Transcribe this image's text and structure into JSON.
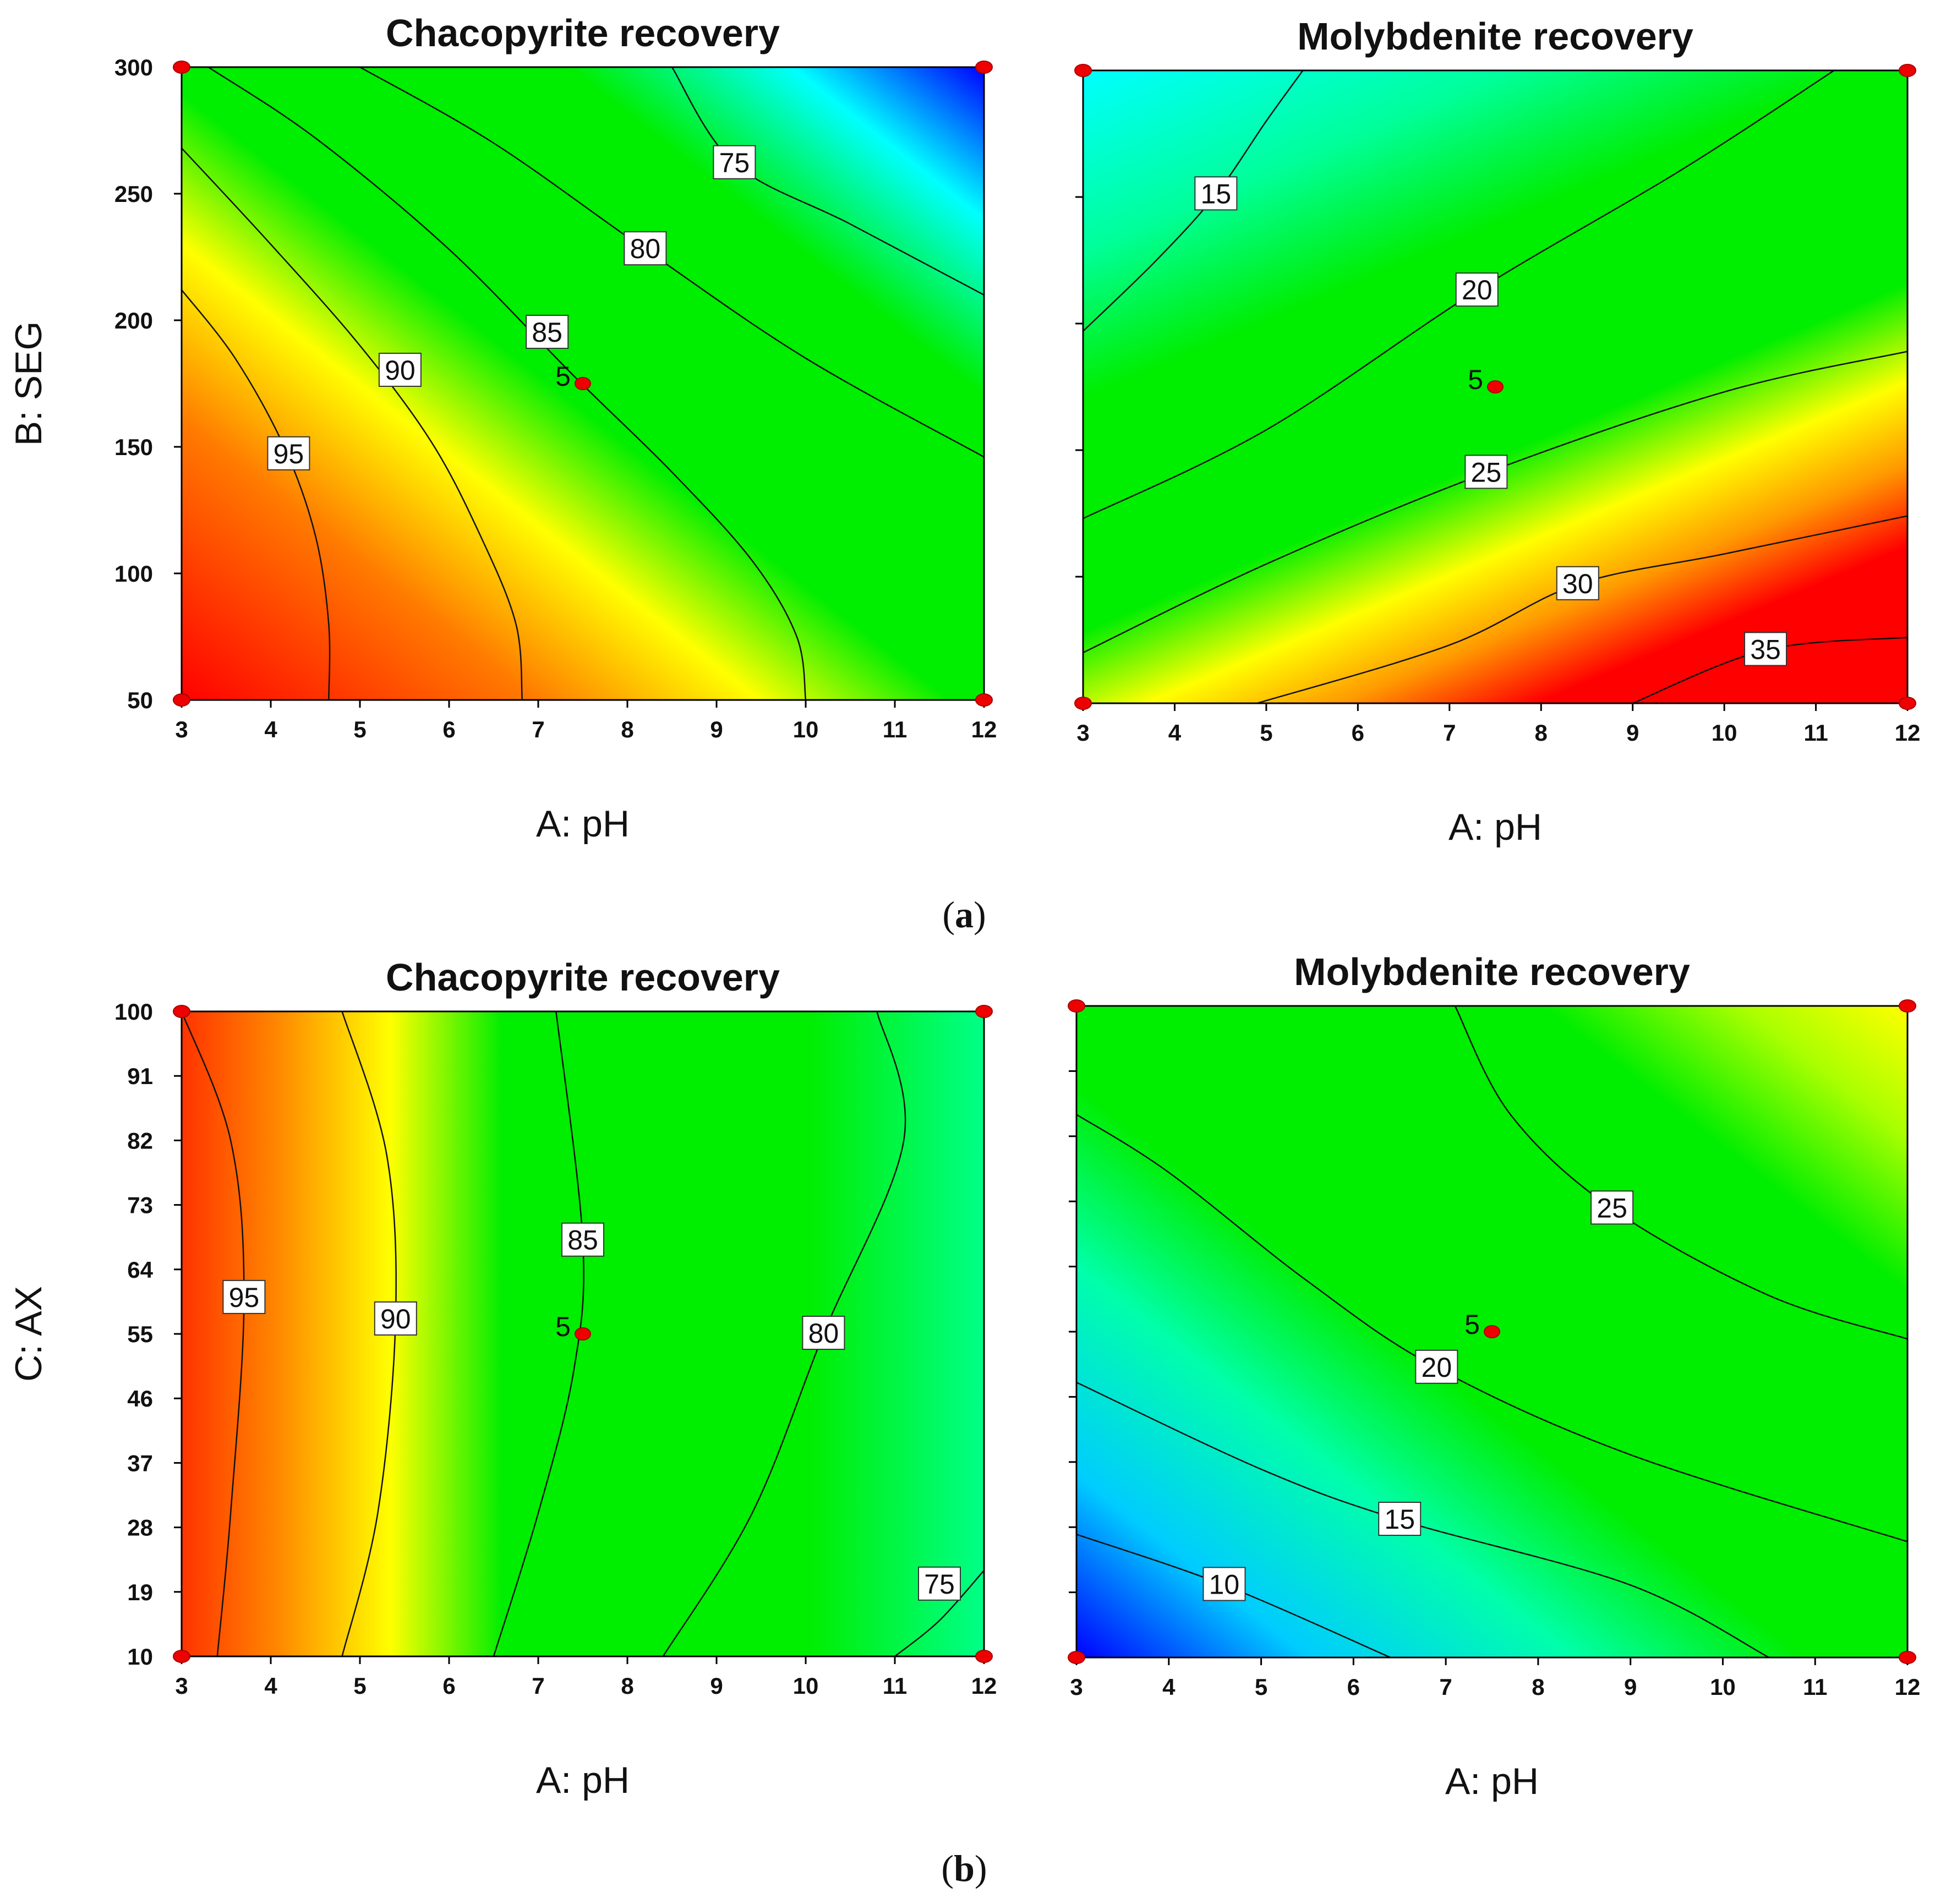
{
  "chart_data": [
    {
      "type": "heatmap",
      "title": "Chacopyrite recovery",
      "xlabel": "A: pH",
      "ylabel": "B: SEG",
      "xlim": [
        3,
        12
      ],
      "ylim": [
        50,
        300
      ],
      "xticks": [
        "3",
        "4",
        "5",
        "6",
        "7",
        "8",
        "9",
        "10",
        "11",
        "12"
      ],
      "yticks": [
        "50",
        "100",
        "150",
        "200",
        "250",
        "300"
      ],
      "colorscale": "blue-cyan-green-yellow-red (low to high)",
      "color_range": [
        71,
        98
      ],
      "contours": [
        {
          "level": 95,
          "label": "95",
          "label_at": [
            4.2,
            147
          ],
          "points": [
            [
              3,
              212
            ],
            [
              3.6,
              185
            ],
            [
              4.15,
              150
            ],
            [
              4.5,
              115
            ],
            [
              4.65,
              80
            ],
            [
              4.65,
              50
            ]
          ]
        },
        {
          "level": 90,
          "label": "90",
          "label_at": [
            5.45,
            180
          ],
          "points": [
            [
              3,
              268
            ],
            [
              4,
              230
            ],
            [
              5,
              190
            ],
            [
              5.8,
              152
            ],
            [
              6.35,
              115
            ],
            [
              6.75,
              80
            ],
            [
              6.82,
              50
            ]
          ]
        },
        {
          "level": 85,
          "label": "85",
          "label_at": [
            7.1,
            195
          ],
          "points": [
            [
              3.3,
              300
            ],
            [
              4.5,
              272
            ],
            [
              6,
              228
            ],
            [
              7.4,
              178
            ],
            [
              8.5,
              140
            ],
            [
              9.4,
              105
            ],
            [
              9.9,
              75
            ],
            [
              10,
              50
            ]
          ]
        },
        {
          "level": 80,
          "label": "80",
          "label_at": [
            8.2,
            228
          ],
          "points": [
            [
              5,
              300
            ],
            [
              6.5,
              270
            ],
            [
              8.2,
              228
            ],
            [
              10,
              185
            ],
            [
              12,
              146
            ]
          ]
        },
        {
          "level": 75,
          "label": "75",
          "label_at": [
            9.2,
            262
          ],
          "points": [
            [
              8.5,
              300
            ],
            [
              9.2,
              262
            ],
            [
              10.5,
              238
            ],
            [
              12,
              210
            ]
          ]
        }
      ],
      "center_point": {
        "x": 7.5,
        "y": 175,
        "label": "5"
      },
      "design_points": [
        [
          3,
          50
        ],
        [
          3,
          300
        ],
        [
          12,
          50
        ],
        [
          12,
          300
        ]
      ],
      "colors": {
        "red": "#ff0000",
        "orange": "#ff8c00",
        "yellow": "#ffff00",
        "green": "#00ee00",
        "cyan": "#00ffff",
        "blue": "#0000ff"
      }
    },
    {
      "type": "heatmap",
      "title": "Molybdenite recovery",
      "xlabel": "A: pH",
      "ylabel": "",
      "xlim": [
        3,
        12
      ],
      "ylim": [
        50,
        300
      ],
      "xticks": [
        "3",
        "4",
        "5",
        "6",
        "7",
        "8",
        "9",
        "10",
        "11",
        "12"
      ],
      "yticks": [],
      "colorscale": "blue-cyan-green-yellow-red (low to high)",
      "color_range": [
        9,
        37
      ],
      "contours": [
        {
          "level": 15,
          "label": "15",
          "label_at": [
            4.45,
            251
          ],
          "points": [
            [
              3,
              197
            ],
            [
              3.8,
              225
            ],
            [
              4.45,
              251
            ],
            [
              5,
              280
            ],
            [
              5.4,
              300
            ]
          ]
        },
        {
          "level": 20,
          "label": "20",
          "label_at": [
            7.3,
            213
          ],
          "points": [
            [
              3,
              123
            ],
            [
              5,
              158
            ],
            [
              7.3,
              213
            ],
            [
              9.5,
              260
            ],
            [
              11.2,
              300
            ]
          ]
        },
        {
          "level": 25,
          "label": "25",
          "label_at": [
            7.4,
            141
          ],
          "points": [
            [
              3,
              70
            ],
            [
              5,
              105
            ],
            [
              7.4,
              141
            ],
            [
              10,
              173
            ],
            [
              12,
              189
            ]
          ]
        },
        {
          "level": 30,
          "label": "30",
          "label_at": [
            8.4,
            97
          ],
          "points": [
            [
              4.9,
              50
            ],
            [
              7,
              73
            ],
            [
              8.4,
              97
            ],
            [
              10,
              109
            ],
            [
              12,
              124
            ]
          ]
        },
        {
          "level": 35,
          "label": "35",
          "label_at": [
            10.45,
            71
          ],
          "points": [
            [
              9,
              50
            ],
            [
              10.45,
              71
            ],
            [
              12,
              76
            ]
          ]
        }
      ],
      "center_point": {
        "x": 7.5,
        "y": 175,
        "label": "5"
      },
      "design_points": [
        [
          3,
          50
        ],
        [
          3,
          300
        ],
        [
          12,
          50
        ],
        [
          12,
          300
        ]
      ],
      "colors": {
        "red": "#ff0000",
        "orange": "#ff8c00",
        "yellow": "#ffff00",
        "green": "#00ee00",
        "cyan": "#00ffff",
        "blue": "#0000ff"
      }
    },
    {
      "type": "heatmap",
      "title": "Chacopyrite recovery",
      "xlabel": "A: pH",
      "ylabel": "C: AX",
      "xlim": [
        3,
        12
      ],
      "ylim": [
        10,
        100
      ],
      "xticks": [
        "3",
        "4",
        "5",
        "6",
        "7",
        "8",
        "9",
        "10",
        "11",
        "12"
      ],
      "yticks": [
        "10",
        "19",
        "28",
        "37",
        "46",
        "55",
        "64",
        "73",
        "82",
        "91",
        "100"
      ],
      "colorscale": "blue-cyan-green-yellow-red (low to high)",
      "color_range": [
        71,
        98
      ],
      "contours": [
        {
          "level": 95,
          "label": "95",
          "label_at": [
            3.7,
            60
          ],
          "points": [
            [
              3,
              100
            ],
            [
              3.55,
              82
            ],
            [
              3.7,
              60
            ],
            [
              3.55,
              30
            ],
            [
              3.4,
              10
            ]
          ]
        },
        {
          "level": 90,
          "label": "90",
          "label_at": [
            5.4,
            57
          ],
          "points": [
            [
              4.8,
              100
            ],
            [
              5.3,
              80
            ],
            [
              5.4,
              57
            ],
            [
              5.2,
              30
            ],
            [
              4.8,
              10
            ]
          ]
        },
        {
          "level": 85,
          "label": "85",
          "label_at": [
            7.5,
            68
          ],
          "points": [
            [
              7.2,
              100
            ],
            [
              7.5,
              68
            ],
            [
              7.4,
              50
            ],
            [
              7,
              30
            ],
            [
              6.5,
              10
            ]
          ]
        },
        {
          "level": 80,
          "label": "80",
          "label_at": [
            10.2,
            55
          ],
          "points": [
            [
              10.8,
              100
            ],
            [
              11.1,
              82
            ],
            [
              10.2,
              55
            ],
            [
              9.4,
              30
            ],
            [
              8.4,
              10
            ]
          ]
        },
        {
          "level": 75,
          "label": "75",
          "label_at": [
            11.5,
            20
          ],
          "points": [
            [
              11,
              10
            ],
            [
              11.5,
              15
            ],
            [
              12,
              22
            ]
          ]
        }
      ],
      "center_point": {
        "x": 7.5,
        "y": 55,
        "label": "5"
      },
      "design_points": [
        [
          3,
          10
        ],
        [
          3,
          100
        ],
        [
          12,
          10
        ],
        [
          12,
          100
        ]
      ],
      "colors": {
        "red": "#ff0000",
        "orange": "#ff8c00",
        "yellow": "#ffff00",
        "green": "#00ee00",
        "cyan": "#00ffff",
        "blue": "#0000ff"
      }
    },
    {
      "type": "heatmap",
      "title": "Molybdenite recovery",
      "xlabel": "A: pH",
      "ylabel": "",
      "xlim": [
        3,
        12
      ],
      "ylim": [
        10,
        100
      ],
      "xticks": [
        "3",
        "4",
        "5",
        "6",
        "7",
        "8",
        "9",
        "10",
        "11",
        "12"
      ],
      "yticks": [],
      "colorscale": "blue-cyan-green-yellow-red (low to high)",
      "color_range": [
        8,
        32
      ],
      "contours": [
        {
          "level": 25,
          "label": "25",
          "label_at": [
            8.8,
            72
          ],
          "points": [
            [
              7.1,
              100
            ],
            [
              7.7,
              85
            ],
            [
              8.8,
              72
            ],
            [
              10.5,
              60
            ],
            [
              12,
              54
            ]
          ]
        },
        {
          "level": 20,
          "label": "20",
          "label_at": [
            6.9,
            50
          ],
          "points": [
            [
              3,
              85
            ],
            [
              4,
              77
            ],
            [
              5.5,
              62
            ],
            [
              6.9,
              50
            ],
            [
              9,
              38
            ],
            [
              12,
              26
            ]
          ]
        },
        {
          "level": 15,
          "label": "15",
          "label_at": [
            6.5,
            29
          ],
          "points": [
            [
              3,
              48
            ],
            [
              5,
              36
            ],
            [
              6.5,
              29
            ],
            [
              9,
              20
            ],
            [
              10.5,
              10
            ]
          ]
        },
        {
          "level": 10,
          "label": "10",
          "label_at": [
            4.6,
            20
          ],
          "points": [
            [
              3,
              27
            ],
            [
              4.6,
              20
            ],
            [
              6.4,
              10
            ]
          ]
        }
      ],
      "center_point": {
        "x": 7.5,
        "y": 55,
        "label": "5"
      },
      "design_points": [
        [
          3,
          10
        ],
        [
          3,
          100
        ],
        [
          12,
          10
        ],
        [
          12,
          100
        ]
      ],
      "colors": {
        "red": "#ff0000",
        "orange": "#ff8c00",
        "yellow": "#ffff00",
        "green": "#00ee00",
        "cyan": "#00ffff",
        "blue": "#0000ff"
      }
    }
  ],
  "subfigure_labels": {
    "a": {
      "open": "(",
      "letter": "a",
      "close": ")"
    },
    "b": {
      "open": "(",
      "letter": "b",
      "close": ")"
    }
  }
}
